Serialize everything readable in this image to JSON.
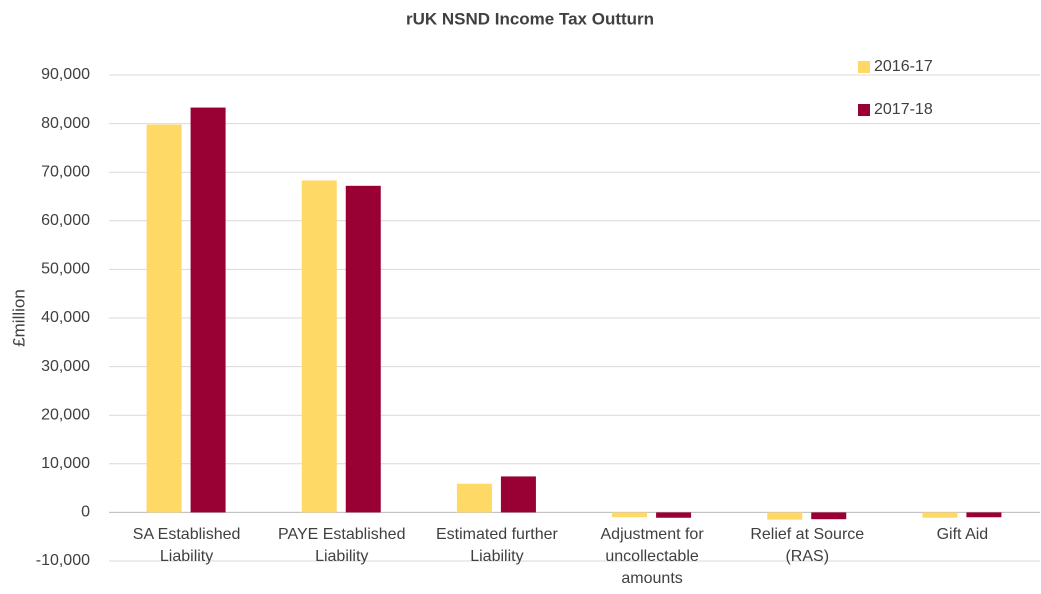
{
  "chart_data": {
    "type": "bar",
    "title": "rUK NSND Income Tax Outturn",
    "y_label": "£million",
    "categories": [
      "SA Established Liability",
      "PAYE Established Liability",
      "Estimated further Liability",
      "Adjustment for uncollectable amounts",
      "Relief at Source (RAS)",
      "Gift Aid"
    ],
    "series": [
      {
        "name": "2016-17",
        "color": "#ffd966",
        "values": [
          79800,
          68300,
          5900,
          -1000,
          -1500,
          -1100
        ]
      },
      {
        "name": "2017-18",
        "color": "#990033",
        "values": [
          83300,
          67200,
          7400,
          -1100,
          -1400,
          -1000
        ]
      }
    ],
    "ylim": [
      -10000,
      90000
    ],
    "yticks": [
      {
        "value": -10000,
        "label": "-10,000"
      },
      0,
      {
        "value": 10000,
        "label": "10,000"
      },
      {
        "value": 20000,
        "label": "20,000"
      },
      {
        "value": 30000,
        "label": "30,000"
      },
      {
        "value": 40000,
        "label": "40,000"
      },
      {
        "value": 50000,
        "label": "50,000"
      },
      {
        "value": 60000,
        "label": "60,000"
      },
      {
        "value": 70000,
        "label": "70,000"
      },
      {
        "value": 80000,
        "label": "80,000"
      },
      {
        "value": 90000,
        "label": "90,000"
      }
    ],
    "grid": true,
    "legend_position": "top-right"
  }
}
